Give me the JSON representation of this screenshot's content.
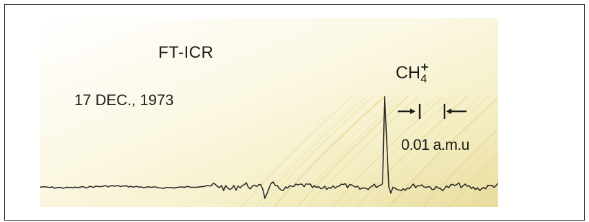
{
  "chart_data": {
    "type": "line",
    "annotations": {
      "technique": "FT-ICR",
      "date": "17 DEC., 1973",
      "ion_base": "CH",
      "ion_subscript": "4",
      "ion_charge": "+",
      "resolution": "0.01 a.m.u"
    },
    "peaks": [
      {
        "label": "CH4+",
        "relative_intensity": 1.0
      }
    ],
    "line_color": "#2a2a2a",
    "background_color": "#fbf6dc",
    "grid": false,
    "legend": "none"
  }
}
